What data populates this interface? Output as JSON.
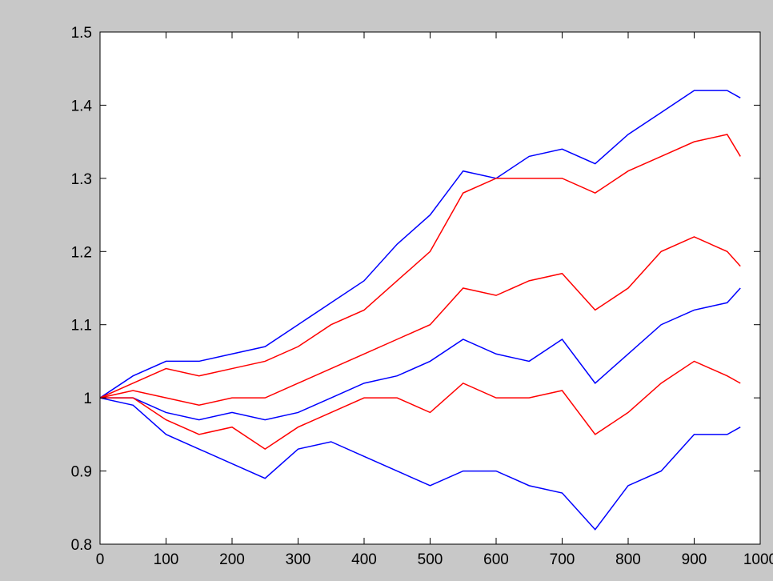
{
  "chart_data": {
    "type": "line",
    "x": [
      0,
      50,
      100,
      150,
      200,
      250,
      300,
      350,
      400,
      450,
      500,
      550,
      600,
      650,
      700,
      750,
      800,
      850,
      900,
      950,
      970
    ],
    "series": [
      {
        "color": "#0000ff",
        "values": [
          1.0,
          1.03,
          1.05,
          1.05,
          1.06,
          1.07,
          1.1,
          1.13,
          1.16,
          1.21,
          1.25,
          1.31,
          1.3,
          1.33,
          1.34,
          1.32,
          1.36,
          1.39,
          1.42,
          1.42,
          1.41
        ]
      },
      {
        "color": "#0000ff",
        "values": [
          1.0,
          0.99,
          0.95,
          0.93,
          0.91,
          0.89,
          0.93,
          0.94,
          0.92,
          0.9,
          0.88,
          0.9,
          0.9,
          0.88,
          0.87,
          0.82,
          0.88,
          0.9,
          0.95,
          0.95,
          0.96
        ]
      },
      {
        "color": "#0000ff",
        "values": [
          1.0,
          1.0,
          0.98,
          0.97,
          0.98,
          0.97,
          0.98,
          1.0,
          1.02,
          1.03,
          1.05,
          1.08,
          1.06,
          1.05,
          1.08,
          1.02,
          1.06,
          1.1,
          1.12,
          1.13,
          1.15
        ]
      },
      {
        "color": "#ff0000",
        "values": [
          1.0,
          1.02,
          1.04,
          1.03,
          1.04,
          1.05,
          1.07,
          1.1,
          1.12,
          1.16,
          1.2,
          1.28,
          1.3,
          1.3,
          1.3,
          1.28,
          1.31,
          1.33,
          1.35,
          1.36,
          1.33
        ]
      },
      {
        "color": "#ff0000",
        "values": [
          1.0,
          1.0,
          0.97,
          0.95,
          0.96,
          0.93,
          0.96,
          0.98,
          1.0,
          1.0,
          0.98,
          1.02,
          1.0,
          1.0,
          1.01,
          0.95,
          0.98,
          1.02,
          1.05,
          1.03,
          1.02
        ]
      },
      {
        "color": "#ff0000",
        "values": [
          1.0,
          1.01,
          1.0,
          0.99,
          1.0,
          1.0,
          1.02,
          1.04,
          1.06,
          1.08,
          1.1,
          1.15,
          1.14,
          1.16,
          1.17,
          1.12,
          1.15,
          1.2,
          1.22,
          1.2,
          1.18
        ]
      }
    ],
    "xlim": [
      0,
      1000
    ],
    "xticks": [
      0,
      100,
      200,
      300,
      400,
      500,
      600,
      700,
      800,
      900,
      1000
    ],
    "ylim": [
      0.8,
      1.5
    ],
    "yticks": [
      0.8,
      0.9,
      1,
      1.1,
      1.2,
      1.3,
      1.4,
      1.5
    ],
    "grid": false
  }
}
